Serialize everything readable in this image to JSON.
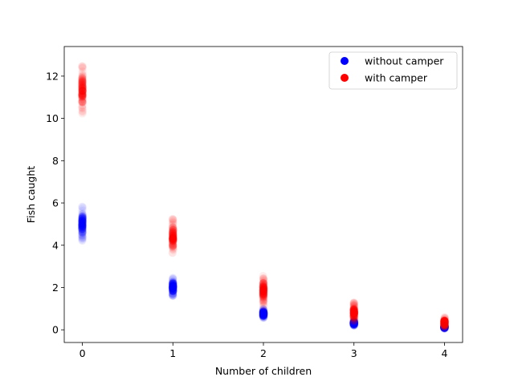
{
  "chart_data": {
    "type": "scatter",
    "title": "",
    "xlabel": "Number of children",
    "ylabel": "Fish caught",
    "xlim": [
      -0.2,
      4.2
    ],
    "ylim": [
      -0.6,
      13.4
    ],
    "x_ticks": [
      0,
      1,
      2,
      3,
      4
    ],
    "y_ticks": [
      0,
      2,
      4,
      6,
      8,
      10,
      12
    ],
    "grid": false,
    "legend_position": "top-right",
    "series": [
      {
        "name": "without camper",
        "color": "#0000ff",
        "points": [
          {
            "x": 0,
            "center": 5.0,
            "low": 4.2,
            "high": 5.9
          },
          {
            "x": 1,
            "center": 2.0,
            "low": 1.6,
            "high": 2.5
          },
          {
            "x": 2,
            "center": 0.75,
            "low": 0.55,
            "high": 1.0
          },
          {
            "x": 3,
            "center": 0.3,
            "low": 0.2,
            "high": 0.45
          },
          {
            "x": 4,
            "center": 0.12,
            "low": 0.05,
            "high": 0.2
          }
        ]
      },
      {
        "name": "with camper",
        "color": "#ff0000",
        "points": [
          {
            "x": 0,
            "center": 11.3,
            "low": 10.2,
            "high": 12.5
          },
          {
            "x": 1,
            "center": 4.3,
            "low": 3.6,
            "high": 5.3
          },
          {
            "x": 2,
            "center": 1.8,
            "low": 1.1,
            "high": 2.6
          },
          {
            "x": 3,
            "center": 0.8,
            "low": 0.4,
            "high": 1.3
          },
          {
            "x": 4,
            "center": 0.3,
            "low": 0.1,
            "high": 0.6
          }
        ]
      }
    ]
  }
}
